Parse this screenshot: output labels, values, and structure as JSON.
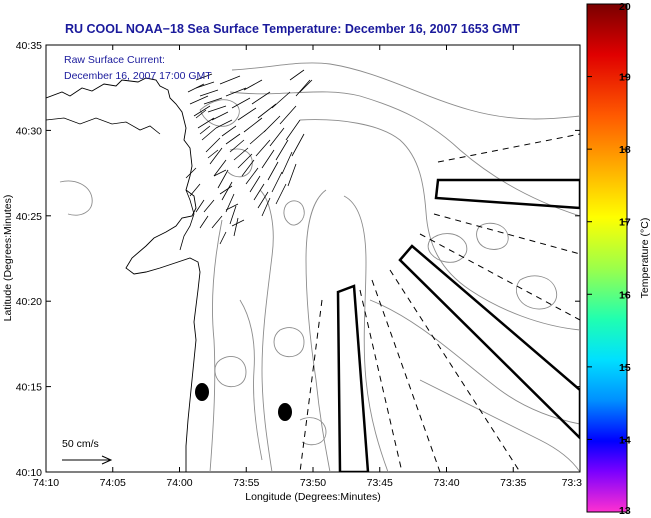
{
  "chart_data": {
    "type": "map",
    "title": "RU COOL  NOAA−18  Sea Surface Temperature:  December 16, 2007 1653 GMT",
    "annotation": [
      "Raw Surface Current:",
      "December 16, 2007 17:00 GMT"
    ],
    "xlabel": "Longitude (Degrees:Minutes)",
    "ylabel": "Latitude (Degrees:Minutes)",
    "x_ticks": [
      "74:10",
      "74:05",
      "74:00",
      "73:55",
      "73:50",
      "73:45",
      "73:40",
      "73:35",
      "73:3"
    ],
    "y_ticks": [
      "40:35",
      "40:30",
      "40:25",
      "40:20",
      "40:15",
      "40:10"
    ],
    "xlim_minutes_west": [
      10,
      30
    ],
    "ylim_minutes": [
      10,
      35
    ],
    "scale_label": "50 cm/s",
    "colorbar": {
      "label": "Temperature (°C)",
      "ticks": [
        "20",
        "19",
        "18",
        "17",
        "16",
        "15",
        "14",
        "13"
      ],
      "range": [
        13,
        20
      ]
    },
    "grid": false,
    "legend": "none"
  }
}
